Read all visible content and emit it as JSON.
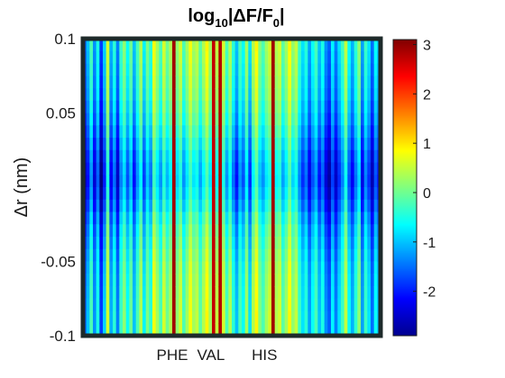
{
  "chart_data": {
    "type": "heatmap",
    "title_parts": {
      "log": "log",
      "log_sub": "10",
      "mid": "|ΔF/F",
      "f_sub": "0",
      "end": "|"
    },
    "ylabel": "Δr (nm)",
    "xlabel": "",
    "ylim": [
      -0.1,
      0.1
    ],
    "y_ticks": [
      {
        "value": 0.1,
        "label": "0.1"
      },
      {
        "value": 0.05,
        "label": "0.05"
      },
      {
        "value": -0.05,
        "label": "-0.05"
      },
      {
        "value": -0.1,
        "label": "-0.1"
      }
    ],
    "x_ticks": [
      {
        "position": 0.3,
        "label": "PHE"
      },
      {
        "position": 0.43,
        "label": "VAL"
      },
      {
        "position": 0.61,
        "label": "HIS"
      }
    ],
    "colorbar": {
      "colormap": "jet",
      "range": [
        -2.9,
        3.1
      ],
      "ticks": [
        3,
        2,
        1,
        0,
        -1,
        -2
      ]
    },
    "column_values": [
      -1.6,
      -1.0,
      -0.2,
      -1.3,
      -0.5,
      -1.8,
      -0.9,
      0.6,
      -1.1,
      -0.4,
      -1.4,
      -0.3,
      0.2,
      -0.6,
      0.0,
      -1.0,
      -0.2,
      0.4,
      -0.7,
      0.1,
      -0.4,
      0.8,
      0.3,
      -0.2,
      0.6,
      0.0,
      0.4,
      2.9,
      0.2,
      0.6,
      -0.2,
      0.3,
      0.8,
      0.3,
      0.5,
      -0.1,
      0.4,
      0.9,
      0.3,
      2.7,
      0.5,
      2.8,
      0.6,
      -0.2,
      0.4,
      -0.4,
      -1.0,
      -0.2,
      -0.6,
      0.3,
      -0.8,
      0.4,
      0.9,
      0.1,
      -0.2,
      0.3,
      0.6,
      2.9,
      0.4,
      0.6,
      -0.1,
      0.3,
      0.9,
      0.2,
      0.5,
      -0.3,
      -0.8,
      -0.4,
      -1.2,
      -0.6,
      -0.2,
      -1.0,
      -0.5,
      -1.3,
      -1.6,
      -0.7,
      -1.4,
      -0.8,
      -0.3,
      0.5,
      -0.6,
      -1.1,
      -0.4,
      0.2,
      -1.2,
      -0.3,
      -0.8,
      -1.5,
      -0.6,
      -1.0
    ],
    "row_profile": [
      0.0,
      0.05,
      0.1,
      0.15,
      0.2,
      0.3,
      0.4,
      0.55,
      0.7,
      0.85,
      0.95,
      1.0,
      0.9,
      0.75,
      0.55,
      0.4,
      0.3,
      0.2,
      0.12,
      0.08,
      0.05,
      0.03,
      0.0,
      0.0
    ]
  }
}
